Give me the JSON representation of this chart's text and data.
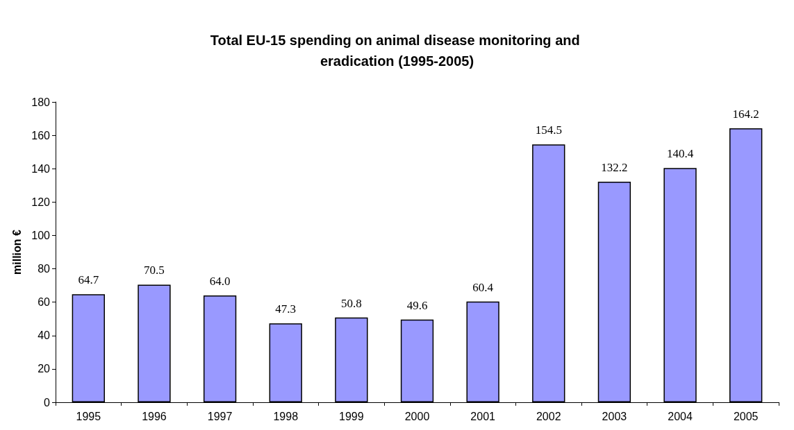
{
  "chart_data": {
    "type": "bar",
    "title": "Total EU-15 spending on animal disease monitoring and eradication (1995-2005)",
    "ylabel": "million €",
    "categories": [
      "1995",
      "1996",
      "1997",
      "1998",
      "1999",
      "2000",
      "2001",
      "2002",
      "2003",
      "2004",
      "2005"
    ],
    "values": [
      64.7,
      70.5,
      64.0,
      47.3,
      50.8,
      49.6,
      60.4,
      154.5,
      132.2,
      140.4,
      164.2
    ],
    "value_labels": [
      "64.7",
      "70.5",
      "64.0",
      "47.3",
      "50.8",
      "49.6",
      "60.4",
      "154.5",
      "132.2",
      "140.4",
      "164.2"
    ],
    "color": "#9999ff",
    "ylim": [
      0,
      180
    ],
    "yticks": [
      0,
      20,
      40,
      60,
      80,
      100,
      120,
      140,
      160,
      180
    ],
    "grid": false
  }
}
